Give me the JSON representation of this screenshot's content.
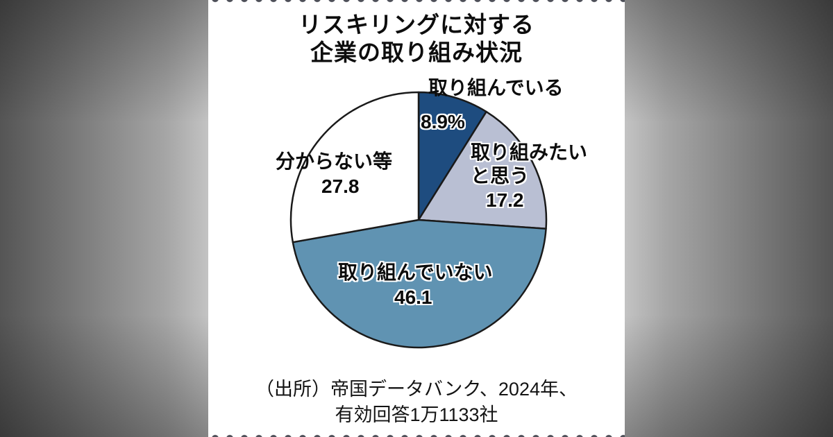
{
  "title": {
    "line1": "リスキリングに対する",
    "line2": "企業の取り組み状況"
  },
  "chart_data": {
    "type": "pie",
    "title": "リスキリングに対する企業の取り組み状況",
    "unit": "%",
    "start_angle_deg": 0,
    "direction": "clockwise",
    "outline_color": "#1a1a1a",
    "slices": [
      {
        "name": "engaged",
        "label": "取り組んでいる",
        "value": 8.9,
        "display": "8.9%",
        "color": "#1e4c7f"
      },
      {
        "name": "want-to-engage",
        "label": "取り組みたいと思う",
        "value": 17.2,
        "display": "17.2",
        "color": "#b9bfd3"
      },
      {
        "name": "not-engaged",
        "label": "取り組んでいない",
        "value": 46.1,
        "display": "46.1",
        "color": "#6093b2"
      },
      {
        "name": "unknown",
        "label": "分からない等",
        "value": 27.8,
        "display": "27.8",
        "color": "#ffffff"
      }
    ],
    "source": "（出所）帝国データバンク、2024年、有効回答1万1133社"
  },
  "labels": {
    "want_line1": "取り組みたい",
    "want_line2": "と思う"
  },
  "source": {
    "line1": "（出所）帝国データバンク、2024年、",
    "line2": "有効回答1万1133社"
  }
}
